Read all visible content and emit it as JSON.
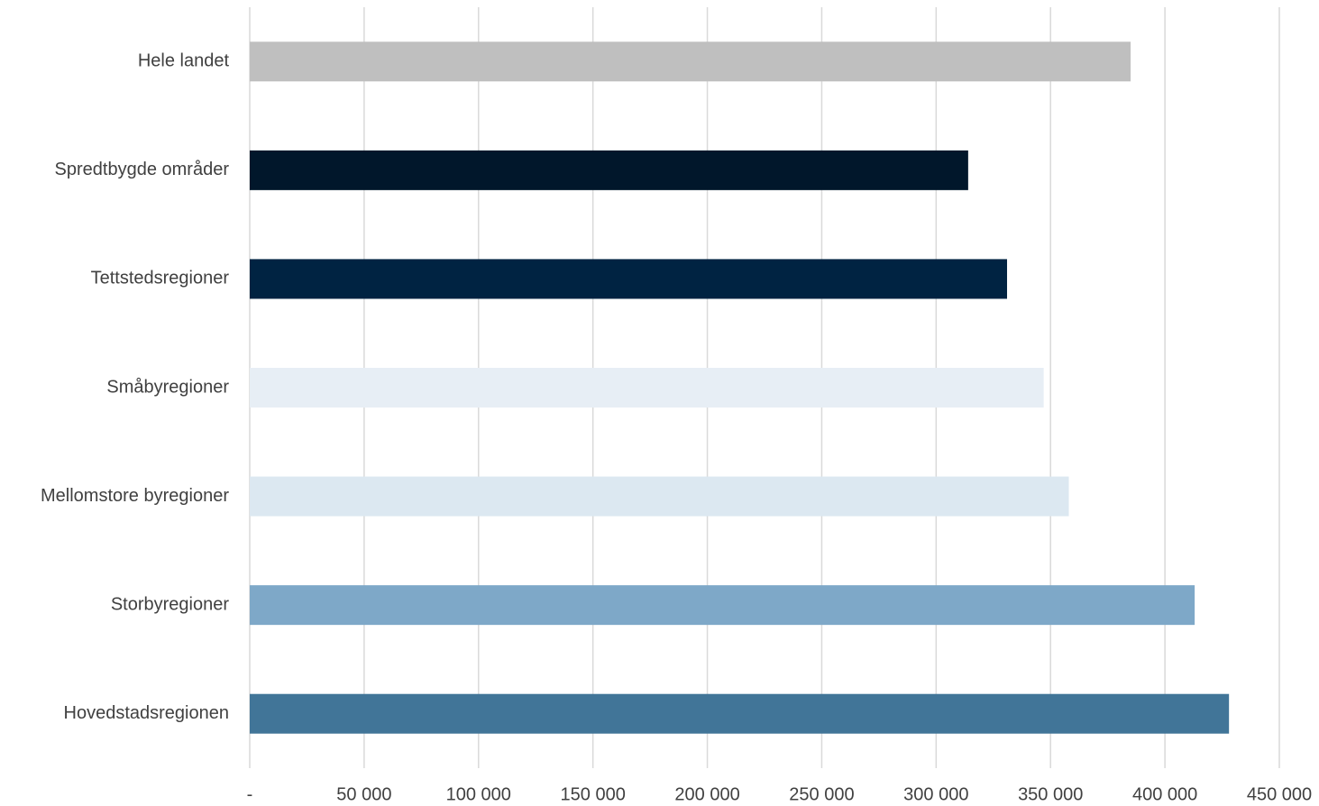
{
  "chart_data": {
    "type": "bar",
    "orientation": "horizontal",
    "categories": [
      "Hele landet",
      "Spredtbygde områder",
      "Tettstedsregioner",
      "Småbyregioner",
      "Mellomstore byregioner",
      "Storbyregioner",
      "Hovedstadsregionen"
    ],
    "values": [
      385000,
      314000,
      331000,
      347000,
      358000,
      413000,
      428000
    ],
    "colors": [
      "#bfbfbf",
      "#01172b",
      "#002342",
      "#e7eef5",
      "#dce8f1",
      "#7ea8c8",
      "#417598"
    ],
    "xlim": [
      0,
      450000
    ],
    "xticks": [
      {
        "value": 0,
        "label": "-"
      },
      {
        "value": 50000,
        "label": "50 000"
      },
      {
        "value": 100000,
        "label": "100 000"
      },
      {
        "value": 150000,
        "label": "150 000"
      },
      {
        "value": 200000,
        "label": "200 000"
      },
      {
        "value": 250000,
        "label": "250 000"
      },
      {
        "value": 300000,
        "label": "300 000"
      },
      {
        "value": 350000,
        "label": "350 000"
      },
      {
        "value": 400000,
        "label": "400 000"
      },
      {
        "value": 450000,
        "label": "450 000"
      }
    ],
    "grid": true
  }
}
